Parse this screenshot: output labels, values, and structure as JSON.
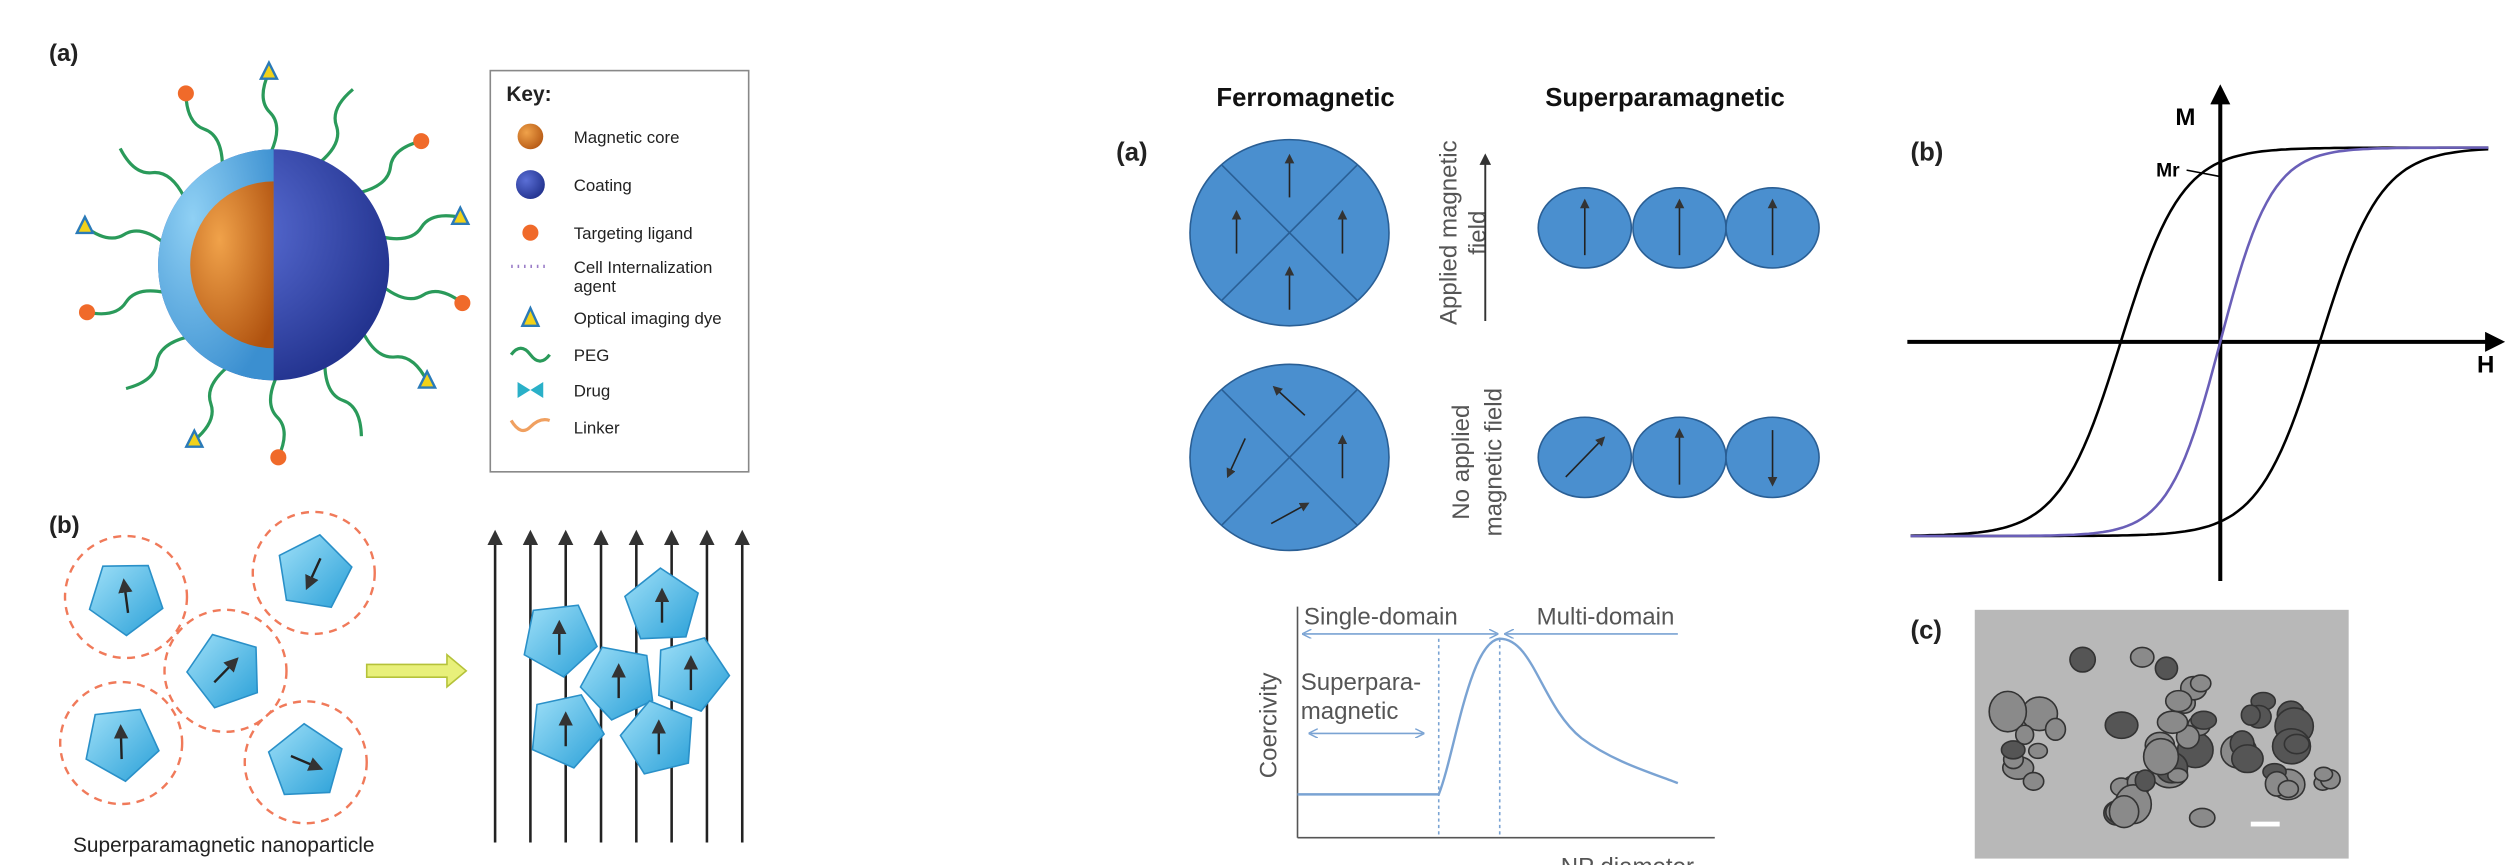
{
  "left": {
    "panel_a": {
      "label": "(a)",
      "key": {
        "title": "Key:",
        "items": [
          {
            "lines": [
              "Magnetic core"
            ]
          },
          {
            "lines": [
              "Coating"
            ]
          },
          {
            "lines": [
              "Targeting ligand"
            ]
          },
          {
            "lines": [
              "Cell Internalization",
              "agent"
            ]
          },
          {
            "lines": [
              "Optical imaging dye"
            ]
          },
          {
            "lines": [
              "PEG"
            ]
          },
          {
            "lines": [
              "Drug"
            ]
          },
          {
            "lines": [
              "Linker"
            ]
          }
        ]
      }
    },
    "panel_b": {
      "label": "(b)",
      "caption": "Superparamagnetic nanoparticle"
    }
  },
  "middle": {
    "label": "(a)",
    "headers": [
      "Ferromagnetic",
      "Superparamagnetic"
    ],
    "applied": [
      "Applied magnetic",
      "field"
    ],
    "not_applied": [
      "No applied",
      "magnetic field"
    ],
    "plot": {
      "single_domain": "Single-domain",
      "multi_domain": "Multi-domain",
      "superpara": [
        "Superpara-",
        "magnetic"
      ],
      "y_label": "Coercivity",
      "x_label": "NP diameter"
    }
  },
  "right": {
    "panel_b": {
      "label": "(b)",
      "y_axis": "M",
      "x_axis": "H",
      "remanence": "Mr"
    },
    "panel_c": {
      "label": "(c)"
    }
  }
}
